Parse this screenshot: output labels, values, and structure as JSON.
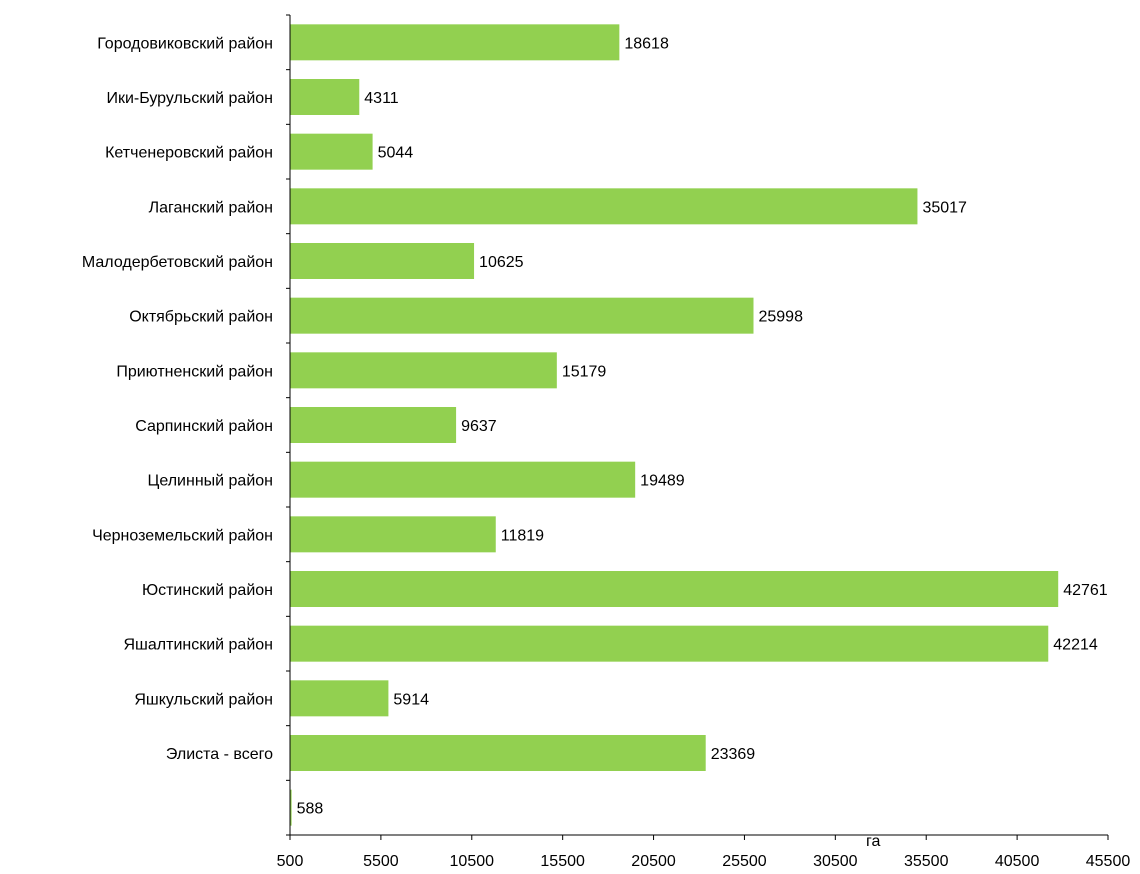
{
  "chart_data": {
    "type": "bar",
    "orientation": "horizontal",
    "categories": [
      "Городовиковский район",
      "Ики-Бурульский район",
      "Кетченеровский район",
      "Лаганский район",
      "Малодербетовский район",
      "Октябрьский район",
      "Приютненский район",
      "Сарпинский район",
      "Целинный район",
      "Черноземельский район",
      "Юстинский район",
      "Яшалтинский район",
      "Яшкульский район",
      "Элиста - всего",
      ""
    ],
    "values": [
      18618,
      4311,
      5044,
      35017,
      10625,
      25998,
      15179,
      9637,
      19489,
      11819,
      42761,
      42214,
      5914,
      23369,
      588
    ],
    "xlabel": "га",
    "ylabel": "",
    "xlim": [
      500,
      45500
    ],
    "xticks": [
      500,
      5500,
      10500,
      15500,
      20500,
      25500,
      30500,
      35500,
      40500,
      45500
    ],
    "bar_color": "#92d050",
    "grid": false,
    "data_labels": true
  }
}
